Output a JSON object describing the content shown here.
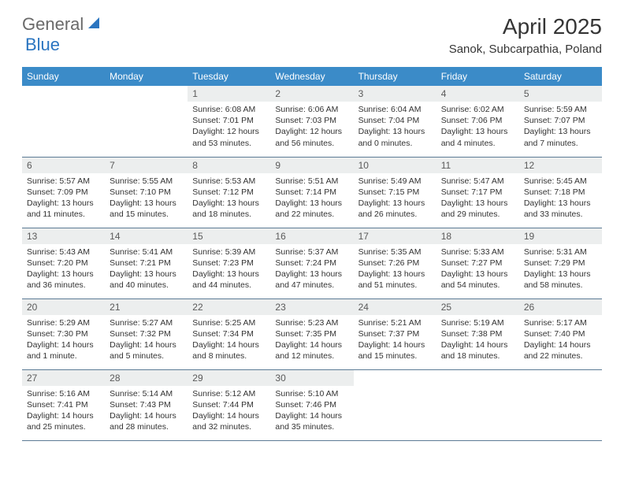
{
  "brand": {
    "general": "General",
    "blue": "Blue"
  },
  "title": "April 2025",
  "location": "Sanok, Subcarpathia, Poland",
  "colors": {
    "header_bg": "#3b8bc8",
    "header_text": "#ffffff",
    "daynum_bg": "#eceeee",
    "border": "#5c7b95",
    "logo_gray": "#6a6a6a",
    "logo_blue": "#2b75c0"
  },
  "weekdays": [
    "Sunday",
    "Monday",
    "Tuesday",
    "Wednesday",
    "Thursday",
    "Friday",
    "Saturday"
  ],
  "weeks": [
    [
      null,
      null,
      {
        "n": "1",
        "sr": "6:08 AM",
        "ss": "7:01 PM",
        "dl": "12 hours and 53 minutes."
      },
      {
        "n": "2",
        "sr": "6:06 AM",
        "ss": "7:03 PM",
        "dl": "12 hours and 56 minutes."
      },
      {
        "n": "3",
        "sr": "6:04 AM",
        "ss": "7:04 PM",
        "dl": "13 hours and 0 minutes."
      },
      {
        "n": "4",
        "sr": "6:02 AM",
        "ss": "7:06 PM",
        "dl": "13 hours and 4 minutes."
      },
      {
        "n": "5",
        "sr": "5:59 AM",
        "ss": "7:07 PM",
        "dl": "13 hours and 7 minutes."
      }
    ],
    [
      {
        "n": "6",
        "sr": "5:57 AM",
        "ss": "7:09 PM",
        "dl": "13 hours and 11 minutes."
      },
      {
        "n": "7",
        "sr": "5:55 AM",
        "ss": "7:10 PM",
        "dl": "13 hours and 15 minutes."
      },
      {
        "n": "8",
        "sr": "5:53 AM",
        "ss": "7:12 PM",
        "dl": "13 hours and 18 minutes."
      },
      {
        "n": "9",
        "sr": "5:51 AM",
        "ss": "7:14 PM",
        "dl": "13 hours and 22 minutes."
      },
      {
        "n": "10",
        "sr": "5:49 AM",
        "ss": "7:15 PM",
        "dl": "13 hours and 26 minutes."
      },
      {
        "n": "11",
        "sr": "5:47 AM",
        "ss": "7:17 PM",
        "dl": "13 hours and 29 minutes."
      },
      {
        "n": "12",
        "sr": "5:45 AM",
        "ss": "7:18 PM",
        "dl": "13 hours and 33 minutes."
      }
    ],
    [
      {
        "n": "13",
        "sr": "5:43 AM",
        "ss": "7:20 PM",
        "dl": "13 hours and 36 minutes."
      },
      {
        "n": "14",
        "sr": "5:41 AM",
        "ss": "7:21 PM",
        "dl": "13 hours and 40 minutes."
      },
      {
        "n": "15",
        "sr": "5:39 AM",
        "ss": "7:23 PM",
        "dl": "13 hours and 44 minutes."
      },
      {
        "n": "16",
        "sr": "5:37 AM",
        "ss": "7:24 PM",
        "dl": "13 hours and 47 minutes."
      },
      {
        "n": "17",
        "sr": "5:35 AM",
        "ss": "7:26 PM",
        "dl": "13 hours and 51 minutes."
      },
      {
        "n": "18",
        "sr": "5:33 AM",
        "ss": "7:27 PM",
        "dl": "13 hours and 54 minutes."
      },
      {
        "n": "19",
        "sr": "5:31 AM",
        "ss": "7:29 PM",
        "dl": "13 hours and 58 minutes."
      }
    ],
    [
      {
        "n": "20",
        "sr": "5:29 AM",
        "ss": "7:30 PM",
        "dl": "14 hours and 1 minute."
      },
      {
        "n": "21",
        "sr": "5:27 AM",
        "ss": "7:32 PM",
        "dl": "14 hours and 5 minutes."
      },
      {
        "n": "22",
        "sr": "5:25 AM",
        "ss": "7:34 PM",
        "dl": "14 hours and 8 minutes."
      },
      {
        "n": "23",
        "sr": "5:23 AM",
        "ss": "7:35 PM",
        "dl": "14 hours and 12 minutes."
      },
      {
        "n": "24",
        "sr": "5:21 AM",
        "ss": "7:37 PM",
        "dl": "14 hours and 15 minutes."
      },
      {
        "n": "25",
        "sr": "5:19 AM",
        "ss": "7:38 PM",
        "dl": "14 hours and 18 minutes."
      },
      {
        "n": "26",
        "sr": "5:17 AM",
        "ss": "7:40 PM",
        "dl": "14 hours and 22 minutes."
      }
    ],
    [
      {
        "n": "27",
        "sr": "5:16 AM",
        "ss": "7:41 PM",
        "dl": "14 hours and 25 minutes."
      },
      {
        "n": "28",
        "sr": "5:14 AM",
        "ss": "7:43 PM",
        "dl": "14 hours and 28 minutes."
      },
      {
        "n": "29",
        "sr": "5:12 AM",
        "ss": "7:44 PM",
        "dl": "14 hours and 32 minutes."
      },
      {
        "n": "30",
        "sr": "5:10 AM",
        "ss": "7:46 PM",
        "dl": "14 hours and 35 minutes."
      },
      null,
      null,
      null
    ]
  ],
  "labels": {
    "sunrise": "Sunrise: ",
    "sunset": "Sunset: ",
    "daylight": "Daylight: "
  }
}
